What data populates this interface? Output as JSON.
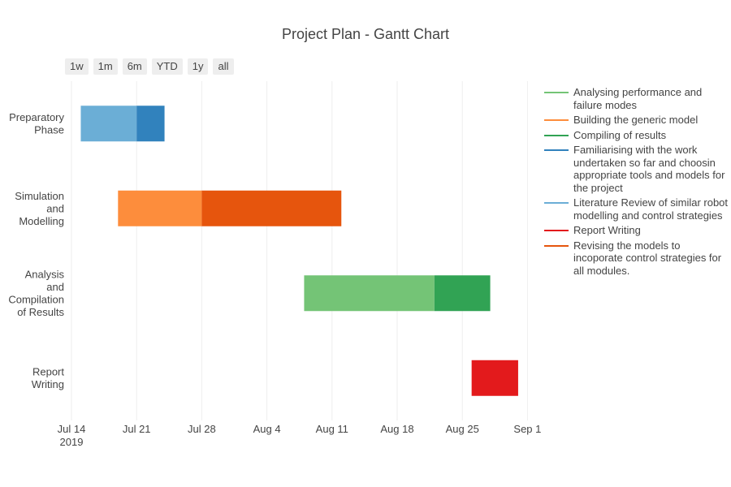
{
  "title": "Project Plan - Gantt Chart",
  "range_buttons": [
    "1w",
    "1m",
    "6m",
    "YTD",
    "1y",
    "all"
  ],
  "legend": [
    {
      "label": "Analysing performance and failure modes",
      "color": "#74c476"
    },
    {
      "label": "Building the generic model",
      "color": "#fd8d3c"
    },
    {
      "label": "Compiling of results",
      "color": "#31a354"
    },
    {
      "label": "Familiarising with the work undertaken so far and choosin appropriate tools and models for the project",
      "color": "#3182bd"
    },
    {
      "label": "Literature Review of similar robot modelling and control strategies",
      "color": "#6baed6"
    },
    {
      "label": "Report Writing",
      "color": "#e31a1c"
    },
    {
      "label": "Revising the models to incoporate control strategies for all modules.",
      "color": "#e6550d"
    }
  ],
  "chart_data": {
    "type": "gantt",
    "title": "Project Plan - Gantt Chart",
    "x_range": [
      "2019-07-14",
      "2019-09-03"
    ],
    "x_ticks": [
      {
        "date": "2019-07-14",
        "label": "Jul 14",
        "sublabel": "2019"
      },
      {
        "date": "2019-07-21",
        "label": "Jul 21"
      },
      {
        "date": "2019-07-28",
        "label": "Jul 28"
      },
      {
        "date": "2019-08-04",
        "label": "Aug 4"
      },
      {
        "date": "2019-08-11",
        "label": "Aug 11"
      },
      {
        "date": "2019-08-18",
        "label": "Aug 18"
      },
      {
        "date": "2019-08-25",
        "label": "Aug 25"
      },
      {
        "date": "2019-09-01",
        "label": "Sep 1"
      }
    ],
    "phases": [
      {
        "label": "Preparatory\nPhase",
        "tasks": [
          {
            "name": "Literature Review of similar robot modelling and control strategies",
            "start": "2019-07-15",
            "end": "2019-07-21",
            "color": "#6baed6"
          },
          {
            "name": "Familiarising with the work undertaken so far and choosin appropriate tools and models for the project",
            "start": "2019-07-21",
            "end": "2019-07-24",
            "color": "#3182bd"
          }
        ]
      },
      {
        "label": "Simulation\nand\nModelling",
        "tasks": [
          {
            "name": "Building the generic model",
            "start": "2019-07-19",
            "end": "2019-07-28",
            "color": "#fd8d3c"
          },
          {
            "name": "Revising the models to incoporate control strategies for all modules.",
            "start": "2019-07-28",
            "end": "2019-08-12",
            "color": "#e6550d"
          }
        ]
      },
      {
        "label": "Analysis\nand\nCompilation\nof Results",
        "tasks": [
          {
            "name": "Analysing performance and failure modes",
            "start": "2019-08-08",
            "end": "2019-08-22",
            "color": "#74c476"
          },
          {
            "name": "Compiling of results",
            "start": "2019-08-22",
            "end": "2019-08-28",
            "color": "#31a354"
          }
        ]
      },
      {
        "label": "Report\nWriting",
        "tasks": [
          {
            "name": "Report Writing",
            "start": "2019-08-26",
            "end": "2019-08-31",
            "color": "#e31a1c"
          }
        ]
      }
    ],
    "grid": true,
    "legend_position": "right"
  }
}
